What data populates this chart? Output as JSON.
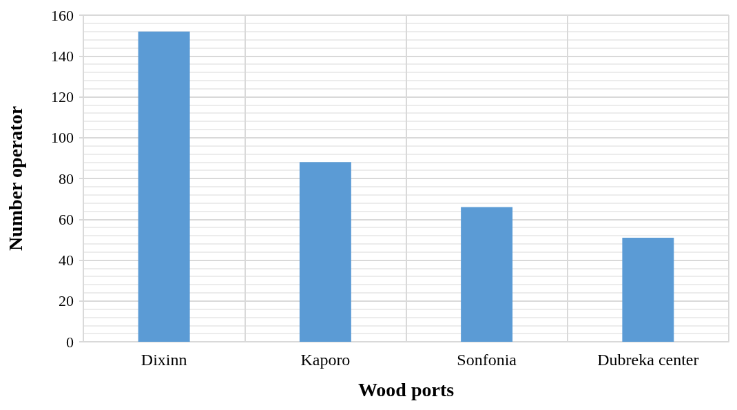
{
  "chart_data": {
    "type": "bar",
    "xlabel": "Wood ports",
    "ylabel": "Number operator",
    "categories": [
      "Dixinn",
      "Kaporo",
      "Sonfonia",
      "Dubreka center"
    ],
    "values": [
      152,
      88,
      66,
      51
    ],
    "color": "#5b9bd5",
    "ylim": [
      0,
      160
    ],
    "yticks": [
      0,
      20,
      40,
      60,
      80,
      100,
      120,
      140,
      160
    ],
    "grid": true
  }
}
